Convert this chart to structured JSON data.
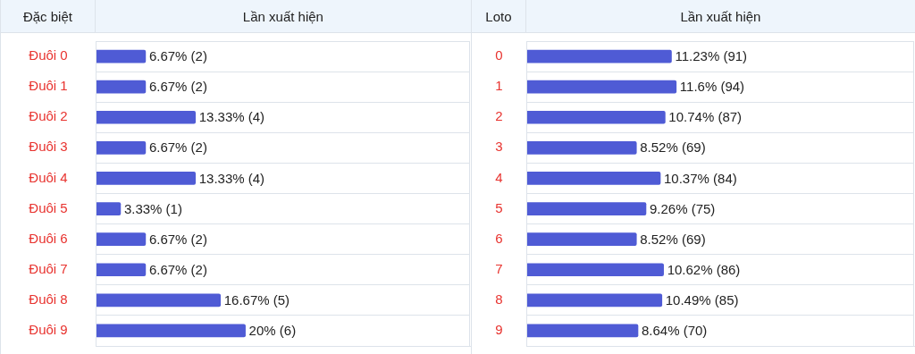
{
  "chart_data": [
    {
      "type": "bar",
      "orientation": "horizontal",
      "ylabel": "Đặc biệt",
      "xlabel": "Lần xuất hiện",
      "categories": [
        "Đuôi 0",
        "Đuôi 1",
        "Đuôi 2",
        "Đuôi 3",
        "Đuôi 4",
        "Đuôi 5",
        "Đuôi 6",
        "Đuôi 7",
        "Đuôi 8",
        "Đuôi 9"
      ],
      "values": [
        6.67,
        6.67,
        13.33,
        6.67,
        13.33,
        3.33,
        6.67,
        6.67,
        16.67,
        20
      ],
      "value_labels": [
        "6.67% (2)",
        "6.67% (2)",
        "13.33% (4)",
        "6.67% (2)",
        "13.33% (4)",
        "3.33% (1)",
        "6.67% (2)",
        "6.67% (2)",
        "16.67% (5)",
        "20% (6)"
      ],
      "color": "#4f5bd5",
      "tick_labels": "y",
      "grid": "y",
      "legend": false
    },
    {
      "type": "bar",
      "orientation": "horizontal",
      "ylabel": "Loto",
      "xlabel": "Lần xuất hiện",
      "categories": [
        "0",
        "1",
        "2",
        "3",
        "4",
        "5",
        "6",
        "7",
        "8",
        "9"
      ],
      "values": [
        11.23,
        11.6,
        10.74,
        8.52,
        10.37,
        9.26,
        8.52,
        10.62,
        10.49,
        8.64
      ],
      "value_labels": [
        "11.23% (91)",
        "11.6% (94)",
        "10.74% (87)",
        "8.52% (69)",
        "10.37% (84)",
        "9.26% (75)",
        "8.52% (69)",
        "10.62% (86)",
        "10.49% (85)",
        "8.64% (70)"
      ],
      "color": "#4f5bd5",
      "tick_labels": "y",
      "grid": "y",
      "legend": false
    }
  ]
}
